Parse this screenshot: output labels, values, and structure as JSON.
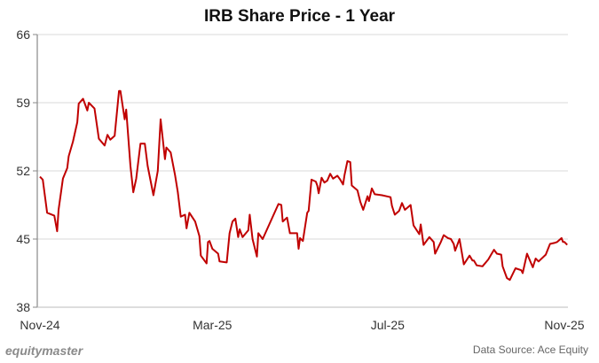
{
  "chart_data": {
    "type": "line",
    "title": "IRB Share Price - 1 Year",
    "xlabel": "",
    "ylabel": "",
    "ylim": [
      38,
      66
    ],
    "yticks": [
      38,
      45,
      52,
      59,
      66
    ],
    "xticks": [
      {
        "date": "2024-11-01",
        "label": "Nov-24"
      },
      {
        "date": "2025-03-01",
        "label": "Mar-25"
      },
      {
        "date": "2025-07-01",
        "label": "Jul-25"
      },
      {
        "date": "2025-11-01",
        "label": "Nov-25"
      }
    ],
    "grid": "horizontal",
    "line_color": "#c00000",
    "series": [
      {
        "points": [
          [
            "2024-11-01",
            51.4
          ],
          [
            "2024-11-03",
            51.1
          ],
          [
            "2024-11-06",
            47.7
          ],
          [
            "2024-11-11",
            47.4
          ],
          [
            "2024-11-13",
            45.8
          ],
          [
            "2024-11-14",
            48.0
          ],
          [
            "2024-11-17",
            51.2
          ],
          [
            "2024-11-20",
            52.3
          ],
          [
            "2024-11-21",
            53.5
          ],
          [
            "2024-11-24",
            55.0
          ],
          [
            "2024-11-27",
            57.0
          ],
          [
            "2024-11-28",
            58.9
          ],
          [
            "2024-12-01",
            59.4
          ],
          [
            "2024-12-04",
            58.2
          ],
          [
            "2024-12-05",
            59.0
          ],
          [
            "2024-12-09",
            58.4
          ],
          [
            "2024-12-12",
            55.3
          ],
          [
            "2024-12-16",
            54.6
          ],
          [
            "2024-12-18",
            55.7
          ],
          [
            "2024-12-20",
            55.2
          ],
          [
            "2024-12-23",
            55.6
          ],
          [
            "2024-12-26",
            60.2
          ],
          [
            "2024-12-27",
            60.2
          ],
          [
            "2024-12-30",
            57.3
          ],
          [
            "2024-12-31",
            58.3
          ],
          [
            "2025-01-03",
            52.5
          ],
          [
            "2025-01-05",
            49.8
          ],
          [
            "2025-01-07",
            51.2
          ],
          [
            "2025-01-10",
            54.8
          ],
          [
            "2025-01-13",
            54.8
          ],
          [
            "2025-01-15",
            52.5
          ],
          [
            "2025-01-19",
            49.5
          ],
          [
            "2025-01-22",
            52.0
          ],
          [
            "2025-01-24",
            57.3
          ],
          [
            "2025-01-27",
            53.2
          ],
          [
            "2025-01-28",
            54.4
          ],
          [
            "2025-01-31",
            53.9
          ],
          [
            "2025-02-03",
            51.6
          ],
          [
            "2025-02-05",
            49.8
          ],
          [
            "2025-02-07",
            47.3
          ],
          [
            "2025-02-10",
            47.5
          ],
          [
            "2025-02-11",
            46.1
          ],
          [
            "2025-02-13",
            47.7
          ],
          [
            "2025-02-17",
            46.8
          ],
          [
            "2025-02-20",
            45.3
          ],
          [
            "2025-02-21",
            43.3
          ],
          [
            "2025-02-25",
            42.5
          ],
          [
            "2025-02-26",
            44.7
          ],
          [
            "2025-02-27",
            44.8
          ],
          [
            "2025-03-01",
            44.0
          ],
          [
            "2025-03-05",
            43.5
          ],
          [
            "2025-03-06",
            42.7
          ],
          [
            "2025-03-11",
            42.6
          ],
          [
            "2025-03-13",
            45.6
          ],
          [
            "2025-03-15",
            46.8
          ],
          [
            "2025-03-17",
            47.1
          ],
          [
            "2025-03-19",
            45.2
          ],
          [
            "2025-03-20",
            46.0
          ],
          [
            "2025-03-22",
            45.2
          ],
          [
            "2025-03-26",
            45.9
          ],
          [
            "2025-03-27",
            47.5
          ],
          [
            "2025-03-29",
            45.0
          ],
          [
            "2025-04-01",
            43.2
          ],
          [
            "2025-04-02",
            45.6
          ],
          [
            "2025-04-05",
            45.0
          ],
          [
            "2025-04-16",
            48.6
          ],
          [
            "2025-04-18",
            48.5
          ],
          [
            "2025-04-19",
            46.8
          ],
          [
            "2025-04-22",
            47.2
          ],
          [
            "2025-04-24",
            45.6
          ],
          [
            "2025-04-29",
            45.6
          ],
          [
            "2025-04-30",
            44.0
          ],
          [
            "2025-05-01",
            45.1
          ],
          [
            "2025-05-03",
            44.8
          ],
          [
            "2025-05-06",
            47.7
          ],
          [
            "2025-05-07",
            47.9
          ],
          [
            "2025-05-09",
            51.1
          ],
          [
            "2025-05-12",
            50.9
          ],
          [
            "2025-05-13",
            50.5
          ],
          [
            "2025-05-14",
            49.7
          ],
          [
            "2025-05-16",
            51.3
          ],
          [
            "2025-05-18",
            50.8
          ],
          [
            "2025-05-20",
            51.0
          ],
          [
            "2025-05-22",
            51.7
          ],
          [
            "2025-05-24",
            51.2
          ],
          [
            "2025-05-27",
            51.5
          ],
          [
            "2025-05-29",
            51.1
          ],
          [
            "2025-05-31",
            50.6
          ],
          [
            "2025-06-01",
            51.6
          ],
          [
            "2025-06-03",
            53.0
          ],
          [
            "2025-06-05",
            52.9
          ],
          [
            "2025-06-06",
            50.5
          ],
          [
            "2025-06-10",
            50.0
          ],
          [
            "2025-06-12",
            48.8
          ],
          [
            "2025-06-14",
            48.0
          ],
          [
            "2025-06-17",
            49.4
          ],
          [
            "2025-06-18",
            48.9
          ],
          [
            "2025-06-20",
            50.2
          ],
          [
            "2025-06-22",
            49.6
          ],
          [
            "2025-06-27",
            49.5
          ],
          [
            "2025-07-03",
            49.3
          ],
          [
            "2025-07-04",
            48.4
          ],
          [
            "2025-07-06",
            47.5
          ],
          [
            "2025-07-09",
            47.9
          ],
          [
            "2025-07-11",
            48.7
          ],
          [
            "2025-07-13",
            48.0
          ],
          [
            "2025-07-17",
            48.5
          ],
          [
            "2025-07-19",
            46.4
          ],
          [
            "2025-07-23",
            45.5
          ],
          [
            "2025-07-24",
            46.5
          ],
          [
            "2025-07-26",
            44.4
          ],
          [
            "2025-07-30",
            45.2
          ],
          [
            "2025-08-02",
            44.7
          ],
          [
            "2025-08-03",
            43.5
          ],
          [
            "2025-08-07",
            44.7
          ],
          [
            "2025-08-09",
            45.4
          ],
          [
            "2025-08-12",
            45.1
          ],
          [
            "2025-08-14",
            45.0
          ],
          [
            "2025-08-16",
            44.5
          ],
          [
            "2025-08-17",
            43.8
          ],
          [
            "2025-08-20",
            45.0
          ],
          [
            "2025-08-23",
            42.4
          ],
          [
            "2025-08-27",
            43.3
          ],
          [
            "2025-08-29",
            42.8
          ],
          [
            "2025-08-30",
            42.8
          ],
          [
            "2025-09-01",
            42.3
          ],
          [
            "2025-09-05",
            42.2
          ],
          [
            "2025-09-09",
            42.9
          ],
          [
            "2025-09-11",
            43.4
          ],
          [
            "2025-09-13",
            43.9
          ],
          [
            "2025-09-15",
            43.5
          ],
          [
            "2025-09-18",
            43.4
          ],
          [
            "2025-09-19",
            42.2
          ],
          [
            "2025-09-22",
            41.0
          ],
          [
            "2025-09-24",
            40.8
          ],
          [
            "2025-09-28",
            42.0
          ],
          [
            "2025-10-02",
            41.8
          ],
          [
            "2025-10-03",
            41.5
          ],
          [
            "2025-10-06",
            43.5
          ],
          [
            "2025-10-10",
            42.1
          ],
          [
            "2025-10-12",
            43.0
          ],
          [
            "2025-10-14",
            42.7
          ],
          [
            "2025-10-19",
            43.4
          ],
          [
            "2025-10-22",
            44.5
          ],
          [
            "2025-10-25",
            44.6
          ],
          [
            "2025-10-27",
            44.7
          ],
          [
            "2025-10-30",
            45.1
          ],
          [
            "2025-10-31",
            44.7
          ],
          [
            "2025-11-01",
            44.7
          ],
          [
            "2025-11-03",
            44.4
          ]
        ]
      }
    ]
  },
  "footer": {
    "brand": "equitymaster",
    "source": "Data Source: Ace Equity"
  }
}
